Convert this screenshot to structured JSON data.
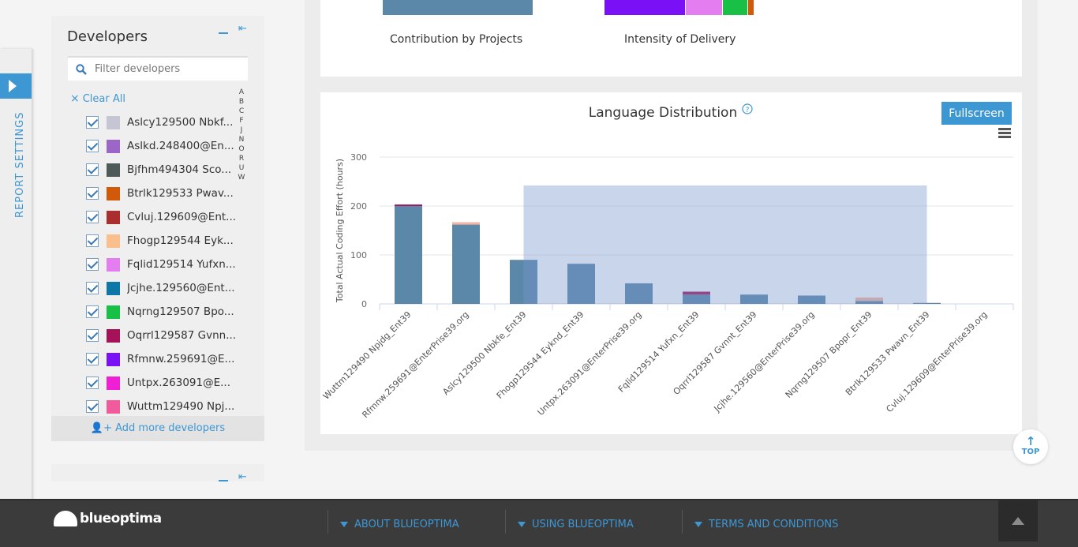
{
  "report_settings": {
    "label": "REPORT SETTINGS"
  },
  "developers_panel": {
    "title": "Developers",
    "filter_placeholder": "Filter developers",
    "clear_all": "Clear All",
    "alpha_index": [
      "A",
      "B",
      "C",
      "F",
      "J",
      "N",
      "O",
      "R",
      "U",
      "W"
    ],
    "developers": [
      {
        "name": "Aslcy129500 Nbkf...",
        "color": "#c5c5d3",
        "checked": true
      },
      {
        "name": "Aslkd.248400@En...",
        "color": "#9b66c7",
        "checked": true
      },
      {
        "name": "Bjfhm494304 Sco...",
        "color": "#4e5a5a",
        "checked": true
      },
      {
        "name": "Btrlk129533 Pwav...",
        "color": "#d05a0a",
        "checked": true
      },
      {
        "name": "Cvluj.129609@Ent...",
        "color": "#ab2e2e",
        "checked": true
      },
      {
        "name": "Fhogp129544 Eyk...",
        "color": "#fbbf8e",
        "checked": true
      },
      {
        "name": "Fqlid129514 Yufxn...",
        "color": "#e47ef0",
        "checked": true
      },
      {
        "name": "Jcjhe.129560@Ent...",
        "color": "#0e77a8",
        "checked": true
      },
      {
        "name": "Nqrng129507 Bpo...",
        "color": "#19c046",
        "checked": true
      },
      {
        "name": "Oqrrl129587 Gvnn...",
        "color": "#a5125a",
        "checked": true
      },
      {
        "name": "Rfmnw.259691@E...",
        "color": "#7a10f6",
        "checked": true
      },
      {
        "name": "Untpx.263091@E...",
        "color": "#f01fd6",
        "checked": true
      },
      {
        "name": "Wuttm129490 Npj...",
        "color": "#f15b9b",
        "checked": true
      }
    ],
    "add_more": "Add more developers"
  },
  "top_card": {
    "caption_projects": "Contribution by Projects",
    "caption_intensity": "Intensity of Delivery",
    "projects_bar_color": "#5b87a8",
    "intensity_segments": [
      {
        "color": "#7a10f6",
        "share": 0.54
      },
      {
        "color": "#e47ef0",
        "share": 0.25
      },
      {
        "color": "#19c046",
        "share": 0.17
      },
      {
        "color": "#d05a0a",
        "share": 0.04
      }
    ]
  },
  "language_card": {
    "title": "Language Distribution",
    "help_icon": "question-icon",
    "fullscreen_label": "Fullscreen",
    "menu_icon": "hamburger-icon"
  },
  "chart_data": {
    "type": "bar",
    "title": "Language Distribution",
    "xlabel": "",
    "ylabel": "Total Actual Coding Effort (hours)",
    "ylim": [
      0,
      300
    ],
    "yticks": [
      0,
      100,
      200,
      300
    ],
    "grid": true,
    "categories": [
      "Wuttm129490 Npjdg_Ent39",
      "Rfmnw.259691@EnterPrise39.org",
      "Aslcy129500 Nbkfe_Ent39",
      "Fhogp129544 Eyknd_Ent39",
      "Untpx.263091@EnterPrise39.org",
      "Fqlid129514 Yufxn_Ent39",
      "Oqrrl129587 Gvnnt_Ent39",
      "Jcjhe.129560@EnterPrise39.org",
      "Nqrng129507 Bpopr_Ent39",
      "Btrlk129533 Pwavn_Ent39",
      "Cvluj.129609@EnterPrise39.org"
    ],
    "series": [
      {
        "color": "#5b87a8",
        "values": [
          200,
          162,
          90,
          82,
          42,
          19,
          19,
          17,
          6,
          2,
          0
        ]
      },
      {
        "color": "#f4b6a0",
        "values": [
          0,
          5,
          0,
          0,
          0,
          0,
          0,
          0,
          7,
          0,
          0
        ]
      },
      {
        "color": "#a5125a",
        "values": [
          3,
          0,
          0,
          0,
          0,
          6,
          0,
          0,
          0,
          0,
          0
        ]
      }
    ],
    "selection_overlay": {
      "from_category": 2.5,
      "to_category": 9.5,
      "ymax": 242,
      "color": "rgba(120,150,205,0.4)"
    }
  },
  "top_button": {
    "label": "TOP"
  },
  "footer": {
    "logo_text": "blueoptima",
    "links": [
      "ABOUT BLUEOPTIMA",
      "USING BLUEOPTIMA",
      "TERMS AND CONDITIONS"
    ]
  }
}
